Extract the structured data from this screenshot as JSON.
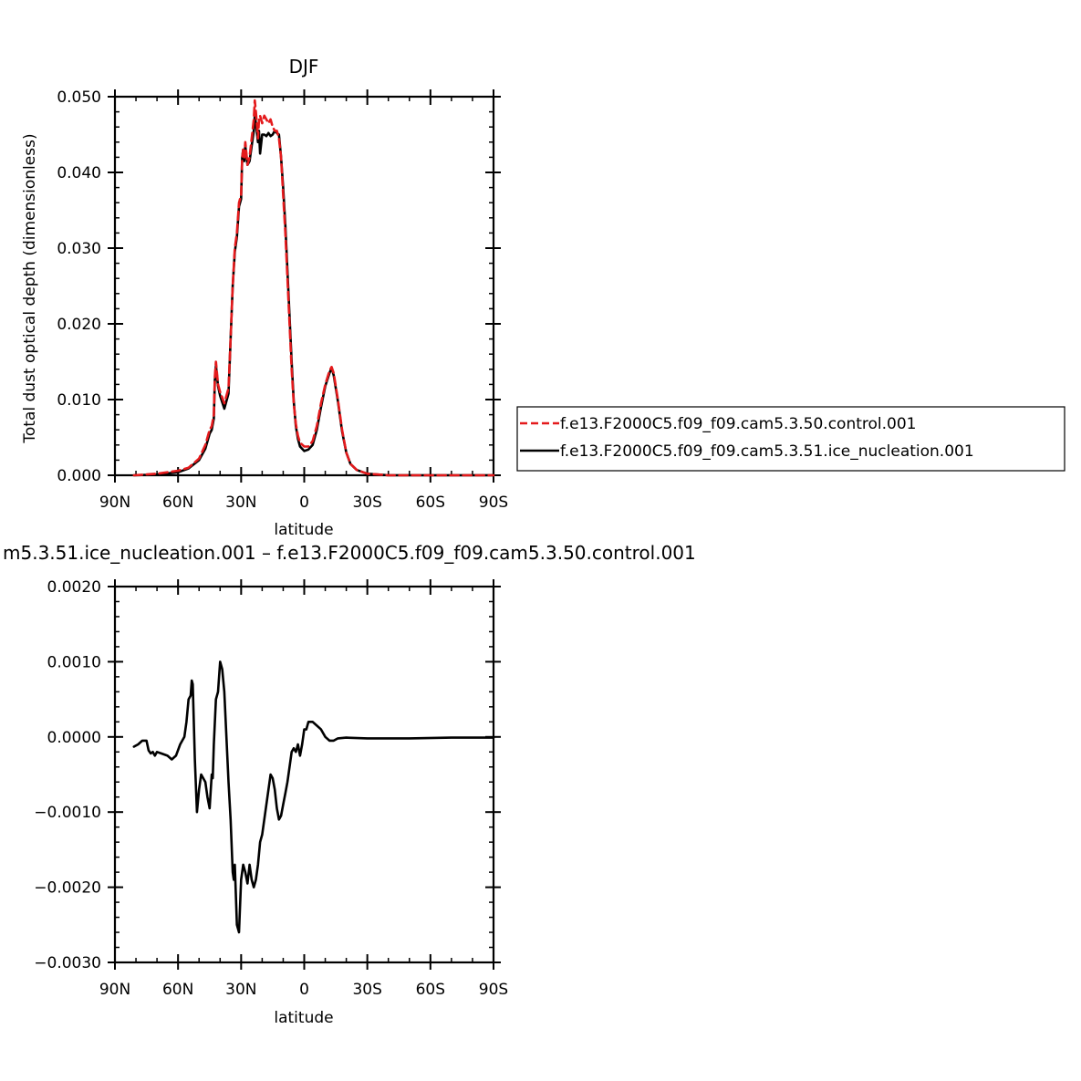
{
  "chart_data": [
    {
      "type": "line",
      "title": "DJF",
      "xlabel": "latitude",
      "ylabel": "Total dust optical depth (dimensionless)",
      "xlim": [
        90,
        -90
      ],
      "ylim": [
        0,
        0.05
      ],
      "xticks": [
        90,
        60,
        30,
        0,
        -30,
        -60,
        -90
      ],
      "xtick_labels": [
        "90N",
        "60N",
        "30N",
        "0",
        "30S",
        "60S",
        "90S"
      ],
      "yticks": [
        0,
        0.01,
        0.02,
        0.03,
        0.04,
        0.05
      ],
      "ytick_labels": [
        "0.000",
        "0.010",
        "0.020",
        "0.030",
        "0.040",
        "0.050"
      ],
      "grid": false,
      "legend_position": "right-outside",
      "series": [
        {
          "name": "f.e13.F2000C5.f09_f09.cam5.3.50.control.001",
          "color": "#e41a1c",
          "dash": "dashed",
          "points": [
            [
              81,
              0.0
            ],
            [
              70,
              0.0002
            ],
            [
              60,
              0.0006
            ],
            [
              55,
              0.001
            ],
            [
              50,
              0.0022
            ],
            [
              47,
              0.004
            ],
            [
              45,
              0.006
            ],
            [
              44,
              0.0065
            ],
            [
              43,
              0.008
            ],
            [
              42.5,
              0.013
            ],
            [
              42,
              0.015
            ],
            [
              41,
              0.012
            ],
            [
              40,
              0.011
            ],
            [
              38,
              0.0095
            ],
            [
              36,
              0.0115
            ],
            [
              35,
              0.018
            ],
            [
              34,
              0.025
            ],
            [
              33,
              0.03
            ],
            [
              32,
              0.032
            ],
            [
              31,
              0.036
            ],
            [
              30,
              0.037
            ],
            [
              29.5,
              0.042
            ],
            [
              29,
              0.043
            ],
            [
              28.5,
              0.042
            ],
            [
              28,
              0.044
            ],
            [
              27,
              0.041
            ],
            [
              26,
              0.042
            ],
            [
              25,
              0.0445
            ],
            [
              24,
              0.047
            ],
            [
              23.5,
              0.0495
            ],
            [
              23,
              0.048
            ],
            [
              22,
              0.0445
            ],
            [
              21.5,
              0.047
            ],
            [
              21,
              0.0475
            ],
            [
              20,
              0.0465
            ],
            [
              19,
              0.0475
            ],
            [
              18,
              0.047
            ],
            [
              17,
              0.0465
            ],
            [
              16,
              0.047
            ],
            [
              15,
              0.046
            ],
            [
              14,
              0.0455
            ],
            [
              13,
              0.0455
            ],
            [
              12,
              0.0445
            ],
            [
              11,
              0.042
            ],
            [
              10,
              0.037
            ],
            [
              9,
              0.032
            ],
            [
              8,
              0.026
            ],
            [
              7,
              0.02
            ],
            [
              6,
              0.014
            ],
            [
              5,
              0.0095
            ],
            [
              4,
              0.0068
            ],
            [
              3,
              0.0052
            ],
            [
              2,
              0.0043
            ],
            [
              0,
              0.0038
            ],
            [
              -2,
              0.0038
            ],
            [
              -4,
              0.0045
            ],
            [
              -6,
              0.0065
            ],
            [
              -8,
              0.0095
            ],
            [
              -10,
              0.012
            ],
            [
              -12,
              0.0138
            ],
            [
              -13,
              0.0143
            ],
            [
              -14,
              0.0135
            ],
            [
              -16,
              0.01
            ],
            [
              -18,
              0.006
            ],
            [
              -20,
              0.003
            ],
            [
              -22,
              0.0015
            ],
            [
              -25,
              0.0007
            ],
            [
              -30,
              0.0002
            ],
            [
              -40,
              0.0
            ],
            [
              -90,
              0.0
            ]
          ]
        },
        {
          "name": "f.e13.F2000C5.f09_f09.cam5.3.51.ice_nucleation.001",
          "color": "#000000",
          "dash": "solid",
          "points": [
            [
              81,
              0.0
            ],
            [
              70,
              0.0001
            ],
            [
              60,
              0.0004
            ],
            [
              55,
              0.0009
            ],
            [
              50,
              0.002
            ],
            [
              47,
              0.0035
            ],
            [
              45,
              0.0055
            ],
            [
              44,
              0.006
            ],
            [
              43,
              0.0075
            ],
            [
              42.5,
              0.0125
            ],
            [
              42,
              0.0145
            ],
            [
              41,
              0.0118
            ],
            [
              40,
              0.0105
            ],
            [
              38,
              0.0088
            ],
            [
              36,
              0.0108
            ],
            [
              35,
              0.018
            ],
            [
              34,
              0.025
            ],
            [
              33,
              0.0295
            ],
            [
              32,
              0.0315
            ],
            [
              31,
              0.0355
            ],
            [
              30,
              0.0365
            ],
            [
              29.5,
              0.042
            ],
            [
              29,
              0.043
            ],
            [
              28.5,
              0.0415
            ],
            [
              28,
              0.0435
            ],
            [
              27,
              0.041
            ],
            [
              26,
              0.0415
            ],
            [
              25,
              0.0435
            ],
            [
              24,
              0.0455
            ],
            [
              23.5,
              0.0475
            ],
            [
              23,
              0.0465
            ],
            [
              22,
              0.044
            ],
            [
              21.5,
              0.0455
            ],
            [
              21,
              0.0425
            ],
            [
              20,
              0.045
            ],
            [
              19,
              0.045
            ],
            [
              18,
              0.0448
            ],
            [
              17,
              0.0452
            ],
            [
              16,
              0.0448
            ],
            [
              15,
              0.045
            ],
            [
              14,
              0.0455
            ],
            [
              13,
              0.0452
            ],
            [
              12,
              0.045
            ],
            [
              11,
              0.042
            ],
            [
              10,
              0.038
            ],
            [
              9,
              0.033
            ],
            [
              8,
              0.027
            ],
            [
              7,
              0.021
            ],
            [
              6,
              0.015
            ],
            [
              5,
              0.0098
            ],
            [
              4,
              0.0065
            ],
            [
              3,
              0.0048
            ],
            [
              2,
              0.0038
            ],
            [
              0,
              0.0032
            ],
            [
              -2,
              0.0034
            ],
            [
              -4,
              0.004
            ],
            [
              -6,
              0.006
            ],
            [
              -8,
              0.009
            ],
            [
              -10,
              0.0118
            ],
            [
              -12,
              0.0135
            ],
            [
              -13,
              0.0142
            ],
            [
              -14,
              0.0132
            ],
            [
              -16,
              0.0098
            ],
            [
              -18,
              0.0058
            ],
            [
              -20,
              0.003
            ],
            [
              -22,
              0.0015
            ],
            [
              -25,
              0.0007
            ],
            [
              -30,
              0.0002
            ],
            [
              -40,
              0.0
            ],
            [
              -90,
              0.0
            ]
          ]
        }
      ]
    },
    {
      "type": "line",
      "title": "m5.3.51.ice_nucleation.001 – f.e13.F2000C5.f09_f09.cam5.3.50.control.001",
      "xlabel": "latitude",
      "ylabel": "",
      "xlim": [
        90,
        -90
      ],
      "ylim": [
        -0.003,
        0.002
      ],
      "xticks": [
        90,
        60,
        30,
        0,
        -30,
        -60,
        -90
      ],
      "xtick_labels": [
        "90N",
        "60N",
        "30N",
        "0",
        "30S",
        "60S",
        "90S"
      ],
      "yticks": [
        0.002,
        0.001,
        0,
        -0.001,
        -0.002,
        -0.003
      ],
      "ytick_labels": [
        "0.0020",
        "0.0010",
        "0.0000",
        "−0.0010",
        "−0.0020",
        "−0.0030"
      ],
      "grid": false,
      "series": [
        {
          "name": "",
          "color": "#000000",
          "dash": "solid",
          "points": [
            [
              81,
              -0.00013
            ],
            [
              79,
              -0.0001
            ],
            [
              77,
              -5e-05
            ],
            [
              75,
              -5e-05
            ],
            [
              74,
              -0.00018
            ],
            [
              73,
              -0.00022
            ],
            [
              72,
              -0.0002
            ],
            [
              71,
              -0.00025
            ],
            [
              70,
              -0.0002
            ],
            [
              68,
              -0.00022
            ],
            [
              65,
              -0.00025
            ],
            [
              63,
              -0.0003
            ],
            [
              61,
              -0.00025
            ],
            [
              59,
              -0.0001
            ],
            [
              57,
              0.0
            ],
            [
              56,
              0.0002
            ],
            [
              55,
              0.0005
            ],
            [
              54,
              0.00055
            ],
            [
              53.5,
              0.00075
            ],
            [
              53,
              0.0007
            ],
            [
              52,
              -0.0003
            ],
            [
              51,
              -0.001
            ],
            [
              50,
              -0.0007
            ],
            [
              49,
              -0.0005
            ],
            [
              47,
              -0.0006
            ],
            [
              46,
              -0.0008
            ],
            [
              45,
              -0.00095
            ],
            [
              44,
              -0.0005
            ],
            [
              43.5,
              -0.00055
            ],
            [
              43,
              -0.0001
            ],
            [
              42,
              0.0005
            ],
            [
              41,
              0.0006
            ],
            [
              40,
              0.001
            ],
            [
              39,
              0.0009
            ],
            [
              38,
              0.0006
            ],
            [
              37,
              0.0
            ],
            [
              36,
              -0.0006
            ],
            [
              35,
              -0.0011
            ],
            [
              34,
              -0.0018
            ],
            [
              33.5,
              -0.0019
            ],
            [
              33,
              -0.0017
            ],
            [
              32,
              -0.0025
            ],
            [
              31,
              -0.0026
            ],
            [
              30,
              -0.0019
            ],
            [
              29,
              -0.0017
            ],
            [
              28,
              -0.0018
            ],
            [
              27,
              -0.00195
            ],
            [
              26,
              -0.0017
            ],
            [
              25,
              -0.0019
            ],
            [
              24,
              -0.002
            ],
            [
              23,
              -0.0019
            ],
            [
              22,
              -0.0017
            ],
            [
              21,
              -0.0014
            ],
            [
              20,
              -0.0013
            ],
            [
              19,
              -0.0011
            ],
            [
              18,
              -0.0009
            ],
            [
              17,
              -0.0007
            ],
            [
              16,
              -0.0005
            ],
            [
              15,
              -0.00055
            ],
            [
              14,
              -0.0007
            ],
            [
              13,
              -0.00095
            ],
            [
              12,
              -0.0011
            ],
            [
              11,
              -0.00105
            ],
            [
              10,
              -0.0009
            ],
            [
              9,
              -0.00075
            ],
            [
              8,
              -0.0006
            ],
            [
              7,
              -0.0004
            ],
            [
              6,
              -0.0002
            ],
            [
              5,
              -0.00015
            ],
            [
              4,
              -0.0002
            ],
            [
              3,
              -0.0001
            ],
            [
              2,
              -0.00025
            ],
            [
              1,
              -0.0001
            ],
            [
              0,
              0.0001
            ],
            [
              -1,
              0.0001
            ],
            [
              -2,
              0.0002
            ],
            [
              -4,
              0.0002
            ],
            [
              -6,
              0.00015
            ],
            [
              -8,
              0.0001
            ],
            [
              -10,
              0.0
            ],
            [
              -12,
              -5e-05
            ],
            [
              -14,
              -5e-05
            ],
            [
              -16,
              -2e-05
            ],
            [
              -20,
              -1e-05
            ],
            [
              -30,
              -2e-05
            ],
            [
              -50,
              -2e-05
            ],
            [
              -70,
              -1e-05
            ],
            [
              -90,
              -1e-05
            ]
          ]
        }
      ]
    }
  ]
}
